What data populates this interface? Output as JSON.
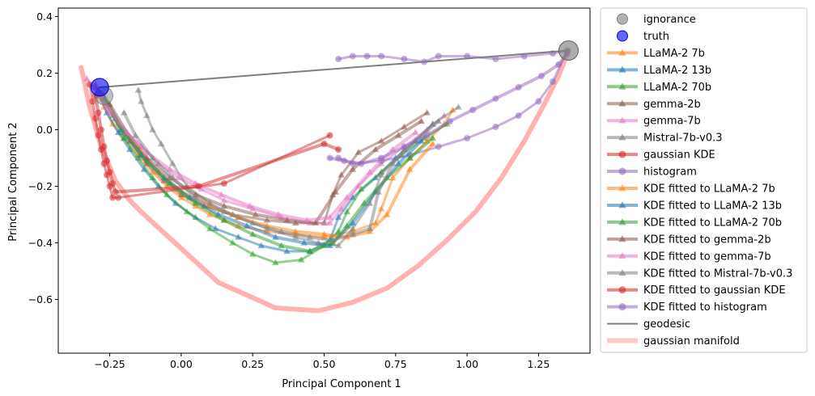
{
  "chart_data": {
    "type": "scatter",
    "title": "",
    "xlabel": "Principal Component 1",
    "ylabel": "Principal Component 2",
    "xlim": [
      -0.43,
      1.43
    ],
    "ylim": [
      -0.79,
      0.43
    ],
    "xticks": [
      -0.25,
      0.0,
      0.25,
      0.5,
      0.75,
      1.0,
      1.25
    ],
    "xtick_labels": [
      "−0.25",
      "0.00",
      "0.25",
      "0.50",
      "0.75",
      "1.00",
      "1.25"
    ],
    "yticks": [
      -0.6,
      -0.4,
      -0.2,
      0.0,
      0.2,
      0.4
    ],
    "ytick_labels": [
      "−0.6",
      "−0.4",
      "−0.2",
      "0.0",
      "0.2",
      "0.4"
    ],
    "grid": false,
    "legend_position": "outside-right",
    "special_points": {
      "ignorance": [
        1.355,
        0.28
      ],
      "truth": [
        -0.285,
        0.15
      ],
      "ignorance_left": [
        -0.27,
        0.12
      ]
    },
    "series": [
      {
        "name": "ignorance",
        "kind": "point",
        "color": "#808080",
        "marker": "circle"
      },
      {
        "name": "truth",
        "kind": "point",
        "color": "#0000ff",
        "marker": "circle"
      },
      {
        "name": "LLaMA-2 7b",
        "kind": "trajectory",
        "color": "#ff7f0e",
        "marker": "triangle",
        "x": [
          -0.3,
          -0.27,
          -0.24,
          -0.2,
          -0.15,
          -0.1,
          -0.05,
          0.0,
          0.05,
          0.1,
          0.15,
          0.2,
          0.3,
          0.4,
          0.5,
          0.6,
          0.68,
          0.7,
          0.74,
          0.8,
          0.86,
          0.92,
          0.95
        ],
        "y": [
          0.16,
          0.08,
          0.02,
          -0.03,
          -0.09,
          -0.15,
          -0.2,
          -0.24,
          -0.27,
          -0.3,
          -0.32,
          -0.34,
          -0.36,
          -0.37,
          -0.38,
          -0.36,
          -0.33,
          -0.28,
          -0.17,
          -0.1,
          -0.04,
          0.02,
          0.07
        ]
      },
      {
        "name": "LLaMA-2 13b",
        "kind": "trajectory",
        "color": "#1f77b4",
        "marker": "triangle",
        "x": [
          -0.29,
          -0.26,
          -0.22,
          -0.18,
          -0.13,
          -0.08,
          -0.02,
          0.05,
          0.12,
          0.2,
          0.28,
          0.37,
          0.45,
          0.52,
          0.55,
          0.6,
          0.68,
          0.75,
          0.82,
          0.88
        ],
        "y": [
          0.14,
          0.06,
          -0.01,
          -0.07,
          -0.14,
          -0.2,
          -0.26,
          -0.31,
          -0.35,
          -0.38,
          -0.41,
          -0.43,
          -0.43,
          -0.39,
          -0.31,
          -0.24,
          -0.17,
          -0.1,
          -0.04,
          0.02
        ]
      },
      {
        "name": "LLaMA-2 70b",
        "kind": "trajectory",
        "color": "#2ca02c",
        "marker": "triangle",
        "x": [
          -0.28,
          -0.24,
          -0.2,
          -0.15,
          -0.1,
          -0.05,
          0.02,
          0.1,
          0.18,
          0.25,
          0.33,
          0.42,
          0.5,
          0.55,
          0.58,
          0.63,
          0.7,
          0.77,
          0.85,
          0.93
        ],
        "y": [
          0.13,
          0.05,
          -0.03,
          -0.1,
          -0.17,
          -0.23,
          -0.29,
          -0.35,
          -0.4,
          -0.44,
          -0.47,
          -0.46,
          -0.41,
          -0.36,
          -0.29,
          -0.21,
          -0.15,
          -0.09,
          -0.03,
          0.02
        ]
      },
      {
        "name": "gemma-2b",
        "kind": "trajectory",
        "color": "#8c564b",
        "marker": "triangle",
        "x": [
          -0.27,
          -0.23,
          -0.18,
          -0.12,
          -0.06,
          0.0,
          0.08,
          0.18,
          0.3,
          0.4,
          0.5,
          0.53,
          0.56,
          0.62,
          0.7,
          0.78,
          0.86
        ],
        "y": [
          0.12,
          0.04,
          -0.04,
          -0.12,
          -0.18,
          -0.23,
          -0.27,
          -0.3,
          -0.32,
          -0.33,
          -0.33,
          -0.23,
          -0.16,
          -0.08,
          -0.04,
          0.01,
          0.06
        ]
      },
      {
        "name": "gemma-7b",
        "kind": "trajectory",
        "color": "#e377c2",
        "marker": "triangle",
        "x": [
          -0.33,
          -0.29,
          -0.25,
          -0.2,
          -0.14,
          -0.08,
          -0.01,
          0.07,
          0.15,
          0.25,
          0.35,
          0.45,
          0.52,
          0.56,
          0.62,
          0.7,
          0.78,
          0.86,
          0.92
        ],
        "y": [
          0.18,
          0.12,
          0.06,
          0.0,
          -0.06,
          -0.12,
          -0.17,
          -0.21,
          -0.25,
          -0.28,
          -0.31,
          -0.33,
          -0.33,
          -0.28,
          -0.2,
          -0.12,
          -0.06,
          0.0,
          0.05
        ]
      },
      {
        "name": "Mistral-7b-v0.3",
        "kind": "trajectory",
        "color": "#7f7f7f",
        "marker": "triangle",
        "x": [
          -0.15,
          -0.14,
          -0.12,
          -0.1,
          -0.07,
          -0.03,
          0.02,
          0.1,
          0.2,
          0.3,
          0.4,
          0.48,
          0.55,
          0.6,
          0.66,
          0.7,
          0.78,
          0.88,
          0.97
        ],
        "y": [
          0.14,
          0.1,
          0.05,
          0.0,
          -0.05,
          -0.12,
          -0.2,
          -0.26,
          -0.31,
          -0.35,
          -0.38,
          -0.4,
          -0.41,
          -0.35,
          -0.26,
          -0.16,
          -0.07,
          0.02,
          0.08
        ]
      },
      {
        "name": "gaussian KDE",
        "kind": "trajectory",
        "color": "#d62728",
        "marker": "circle",
        "x": [
          -0.32,
          -0.31,
          -0.3,
          -0.29,
          -0.28,
          -0.27,
          -0.26,
          -0.25,
          -0.24,
          -0.22,
          0.15,
          0.52
        ],
        "y": [
          0.16,
          0.1,
          0.04,
          -0.02,
          -0.07,
          -0.12,
          -0.16,
          -0.2,
          -0.24,
          -0.24,
          -0.19,
          -0.02
        ]
      },
      {
        "name": "histogram",
        "kind": "trajectory",
        "color": "#9467bd",
        "marker": "circle",
        "x": [
          0.55,
          0.6,
          0.65,
          0.7,
          0.78,
          0.85,
          0.9,
          1.0,
          1.1,
          1.2,
          1.3,
          1.35,
          1.3,
          1.25,
          1.18,
          1.1,
          1.0,
          0.9,
          0.8,
          0.7,
          0.6,
          0.55
        ],
        "y": [
          0.25,
          0.26,
          0.26,
          0.26,
          0.25,
          0.24,
          0.26,
          0.26,
          0.25,
          0.26,
          0.27,
          0.28,
          0.17,
          0.1,
          0.05,
          0.01,
          -0.03,
          -0.06,
          -0.09,
          -0.11,
          -0.12,
          -0.1
        ]
      },
      {
        "name": "KDE fitted to LLaMA-2 7b",
        "kind": "trajectory",
        "color": "#ff7f0e",
        "marker": "triangle",
        "style": "fit",
        "x": [
          -0.28,
          -0.22,
          -0.15,
          -0.08,
          0.0,
          0.1,
          0.2,
          0.3,
          0.4,
          0.5,
          0.58,
          0.66,
          0.72,
          0.8,
          0.88
        ],
        "y": [
          0.12,
          0.02,
          -0.07,
          -0.15,
          -0.22,
          -0.27,
          -0.31,
          -0.34,
          -0.36,
          -0.37,
          -0.38,
          -0.36,
          -0.3,
          -0.14,
          -0.05
        ]
      },
      {
        "name": "KDE fitted to LLaMA-2 13b",
        "kind": "trajectory",
        "color": "#1f77b4",
        "marker": "triangle",
        "style": "fit",
        "x": [
          -0.27,
          -0.21,
          -0.14,
          -0.06,
          0.03,
          0.13,
          0.23,
          0.33,
          0.43,
          0.52,
          0.6,
          0.68,
          0.76,
          0.84
        ],
        "y": [
          0.11,
          0.0,
          -0.09,
          -0.17,
          -0.24,
          -0.3,
          -0.34,
          -0.38,
          -0.4,
          -0.41,
          -0.33,
          -0.22,
          -0.12,
          -0.04
        ]
      },
      {
        "name": "KDE fitted to LLaMA-2 70b",
        "kind": "trajectory",
        "color": "#2ca02c",
        "marker": "triangle",
        "style": "fit",
        "x": [
          -0.26,
          -0.2,
          -0.12,
          -0.04,
          0.05,
          0.15,
          0.25,
          0.35,
          0.45,
          0.53,
          0.58,
          0.64,
          0.72,
          0.8,
          0.88
        ],
        "y": [
          0.1,
          -0.01,
          -0.11,
          -0.19,
          -0.26,
          -0.32,
          -0.37,
          -0.41,
          -0.43,
          -0.4,
          -0.34,
          -0.26,
          -0.17,
          -0.1,
          -0.03
        ]
      },
      {
        "name": "KDE fitted to gemma-2b",
        "kind": "trajectory",
        "color": "#8c564b",
        "marker": "triangle",
        "style": "fit",
        "x": [
          -0.25,
          -0.19,
          -0.12,
          -0.04,
          0.05,
          0.15,
          0.26,
          0.37,
          0.47,
          0.54,
          0.6,
          0.68,
          0.76,
          0.84
        ],
        "y": [
          0.09,
          -0.01,
          -0.1,
          -0.17,
          -0.23,
          -0.27,
          -0.3,
          -0.32,
          -0.33,
          -0.22,
          -0.14,
          -0.07,
          -0.02,
          0.03
        ]
      },
      {
        "name": "KDE fitted to gemma-7b",
        "kind": "trajectory",
        "color": "#e377c2",
        "marker": "triangle",
        "style": "fit",
        "x": [
          -0.3,
          -0.25,
          -0.19,
          -0.12,
          -0.04,
          0.05,
          0.14,
          0.24,
          0.34,
          0.44,
          0.52,
          0.58,
          0.66,
          0.74,
          0.82
        ],
        "y": [
          0.15,
          0.07,
          -0.01,
          -0.08,
          -0.14,
          -0.19,
          -0.23,
          -0.27,
          -0.3,
          -0.32,
          -0.31,
          -0.24,
          -0.15,
          -0.07,
          -0.01
        ]
      },
      {
        "name": "KDE fitted to Mistral-7b-v0.3",
        "kind": "trajectory",
        "color": "#7f7f7f",
        "marker": "triangle",
        "style": "fit",
        "x": [
          -0.2,
          -0.16,
          -0.1,
          -0.03,
          0.05,
          0.15,
          0.25,
          0.35,
          0.45,
          0.53,
          0.6,
          0.66,
          0.69,
          0.74,
          0.82,
          0.9
        ],
        "y": [
          0.06,
          -0.02,
          -0.1,
          -0.17,
          -0.24,
          -0.29,
          -0.33,
          -0.36,
          -0.38,
          -0.39,
          -0.37,
          -0.35,
          -0.22,
          -0.12,
          -0.04,
          0.03
        ]
      },
      {
        "name": "KDE fitted to gaussian KDE",
        "kind": "trajectory",
        "color": "#d62728",
        "marker": "circle",
        "style": "fit",
        "x": [
          -0.3,
          -0.29,
          -0.28,
          -0.27,
          -0.26,
          -0.25,
          -0.24,
          -0.23,
          0.06,
          0.5,
          0.55
        ],
        "y": [
          0.12,
          0.06,
          0.0,
          -0.06,
          -0.11,
          -0.15,
          -0.19,
          -0.22,
          -0.2,
          -0.05,
          -0.07
        ]
      },
      {
        "name": "KDE fitted to histogram",
        "kind": "trajectory",
        "color": "#9467bd",
        "marker": "circle",
        "style": "fit",
        "x": [
          0.52,
          0.57,
          0.63,
          0.7,
          0.78,
          0.86,
          0.94,
          1.02,
          1.1,
          1.18,
          1.26,
          1.32,
          1.35
        ],
        "y": [
          -0.1,
          -0.11,
          -0.12,
          -0.1,
          -0.06,
          -0.02,
          0.03,
          0.07,
          0.11,
          0.15,
          0.19,
          0.23,
          0.27
        ]
      },
      {
        "name": "geodesic",
        "kind": "line",
        "color": "#7f7f7f",
        "x": [
          -0.285,
          1.355
        ],
        "y": [
          0.15,
          0.28
        ]
      },
      {
        "name": "gaussian manifold",
        "kind": "line",
        "color": "#ff9896",
        "x": [
          -0.35,
          -0.32,
          -0.28,
          -0.23,
          -0.18,
          -0.13,
          0.0,
          0.13,
          0.33,
          0.48,
          0.6,
          0.72,
          0.83,
          0.93,
          1.03,
          1.12,
          1.2,
          1.27,
          1.32,
          1.355
        ],
        "y": [
          0.22,
          0.08,
          -0.06,
          -0.18,
          -0.25,
          -0.3,
          -0.42,
          -0.54,
          -0.63,
          -0.64,
          -0.61,
          -0.56,
          -0.48,
          -0.39,
          -0.29,
          -0.17,
          -0.04,
          0.09,
          0.19,
          0.28
        ]
      }
    ],
    "legend": [
      {
        "label": "ignorance",
        "color": "#808080",
        "marker": "circle",
        "line": false
      },
      {
        "label": "truth",
        "color": "#0000ff",
        "marker": "circle",
        "line": false
      },
      {
        "label": "LLaMA-2 7b",
        "color": "#ff7f0e",
        "marker": "triangle",
        "line": true
      },
      {
        "label": "LLaMA-2 13b",
        "color": "#1f77b4",
        "marker": "triangle",
        "line": true
      },
      {
        "label": "LLaMA-2 70b",
        "color": "#2ca02c",
        "marker": "triangle",
        "line": true
      },
      {
        "label": "gemma-2b",
        "color": "#8c564b",
        "marker": "triangle",
        "line": true
      },
      {
        "label": "gemma-7b",
        "color": "#e377c2",
        "marker": "triangle",
        "line": true
      },
      {
        "label": "Mistral-7b-v0.3",
        "color": "#7f7f7f",
        "marker": "triangle",
        "line": true
      },
      {
        "label": "gaussian KDE",
        "color": "#d62728",
        "marker": "circle",
        "line": true
      },
      {
        "label": "histogram",
        "color": "#9467bd",
        "marker": "circle",
        "line": true
      },
      {
        "label": "KDE fitted to LLaMA-2 7b",
        "color": "#ff7f0e",
        "marker": "triangle",
        "line": true
      },
      {
        "label": "KDE fitted to LLaMA-2 13b",
        "color": "#1f77b4",
        "marker": "triangle",
        "line": true
      },
      {
        "label": "KDE fitted to LLaMA-2 70b",
        "color": "#2ca02c",
        "marker": "triangle",
        "line": true
      },
      {
        "label": "KDE fitted to gemma-2b",
        "color": "#8c564b",
        "marker": "triangle",
        "line": true
      },
      {
        "label": "KDE fitted to gemma-7b",
        "color": "#e377c2",
        "marker": "triangle",
        "line": true
      },
      {
        "label": "KDE fitted to Mistral-7b-v0.3",
        "color": "#7f7f7f",
        "marker": "triangle",
        "line": true
      },
      {
        "label": "KDE fitted to gaussian KDE",
        "color": "#d62728",
        "marker": "circle",
        "line": true
      },
      {
        "label": "KDE fitted to histogram",
        "color": "#9467bd",
        "marker": "circle",
        "line": true
      },
      {
        "label": "geodesic",
        "color": "#7f7f7f",
        "marker": "none",
        "line": true
      },
      {
        "label": "gaussian manifold",
        "color": "#ff9896",
        "marker": "none",
        "line": true
      }
    ]
  }
}
